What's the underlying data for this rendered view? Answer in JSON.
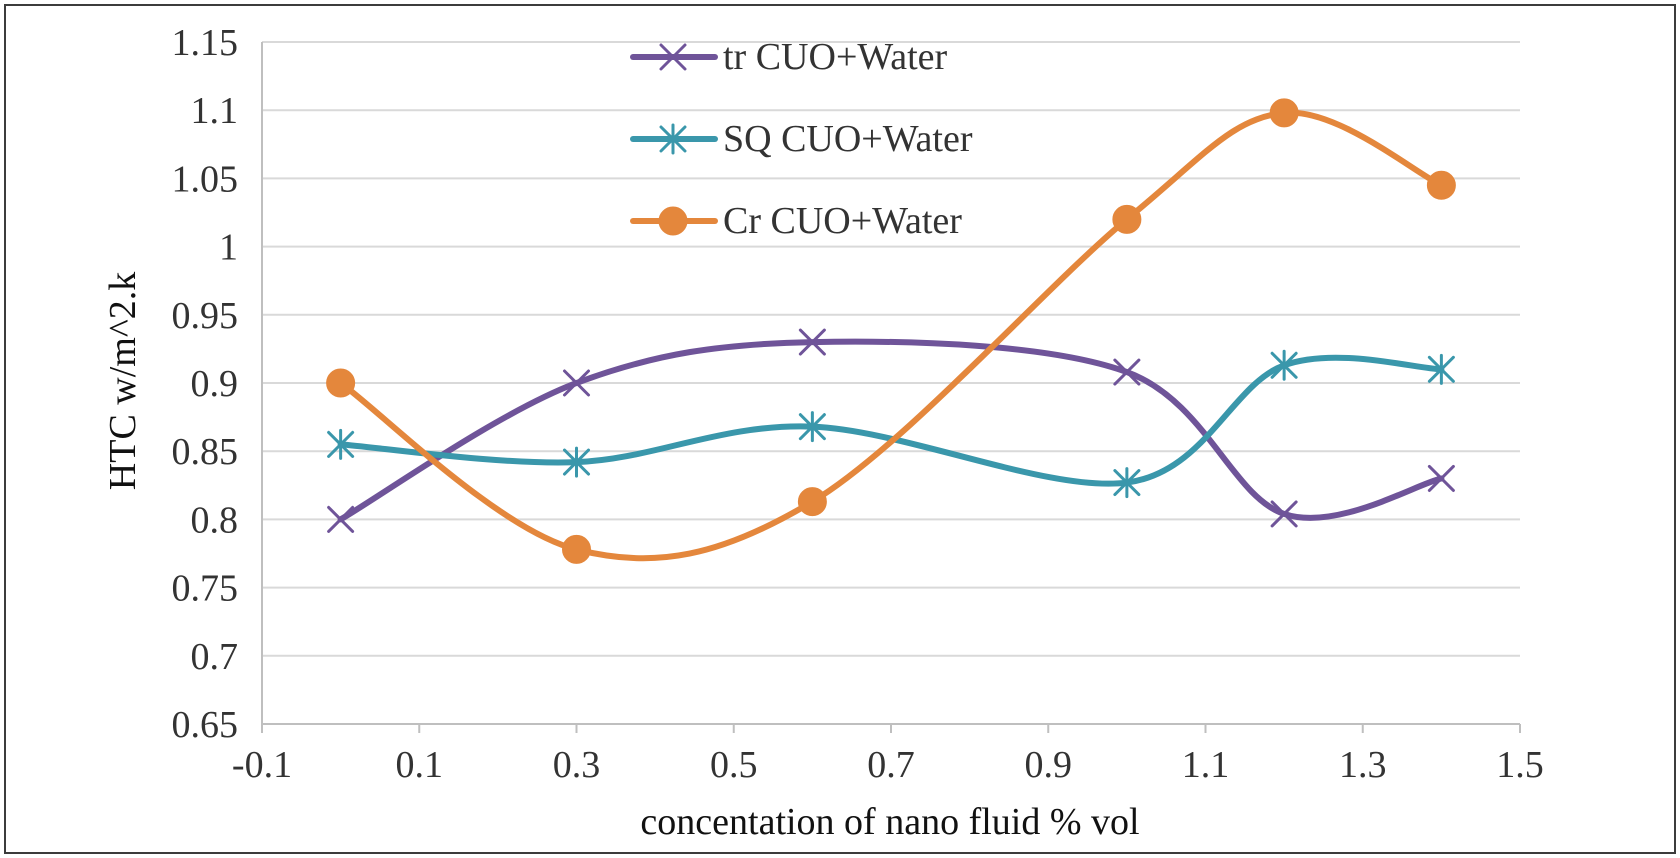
{
  "chart_data": {
    "type": "line",
    "smooth": true,
    "title": "",
    "xlabel": "concentation of nano fluid  % vol",
    "ylabel": "HTC w/m^2.k",
    "xlim": [
      -0.1,
      1.5
    ],
    "ylim": [
      0.65,
      1.15
    ],
    "xticks": [
      -0.1,
      0.1,
      0.3,
      0.5,
      0.7,
      0.9,
      1.1,
      1.3,
      1.5
    ],
    "xtick_labels": [
      "-0.1",
      "0.1",
      "0.3",
      "0.5",
      "0.7",
      "0.9",
      "1.1",
      "1.3",
      "1.5"
    ],
    "yticks": [
      0.65,
      0.7,
      0.75,
      0.8,
      0.85,
      0.9,
      0.95,
      1.0,
      1.05,
      1.1,
      1.15
    ],
    "ytick_labels": [
      "0.65",
      "0.7",
      "0.75",
      "0.8",
      "0.85",
      "0.9",
      "0.95",
      "1",
      "1.05",
      "1.1",
      "1.15"
    ],
    "grid": "horizontal",
    "legend_position": "top-center",
    "series": [
      {
        "name": "tr  CUO+Water",
        "color": "#6f5499",
        "marker": "x",
        "x": [
          0.0,
          0.3,
          0.6,
          1.0,
          1.2,
          1.4
        ],
        "y": [
          0.8,
          0.9,
          0.93,
          0.908,
          0.804,
          0.83
        ]
      },
      {
        "name": "SQ  CUO+Water",
        "color": "#3a97ab",
        "marker": "asterisk",
        "x": [
          0.0,
          0.3,
          0.6,
          1.0,
          1.2,
          1.4
        ],
        "y": [
          0.855,
          0.842,
          0.868,
          0.827,
          0.913,
          0.91
        ]
      },
      {
        "name": "Cr  CUO+Water",
        "color": "#e4873c",
        "marker": "circle",
        "x": [
          0.0,
          0.3,
          0.6,
          1.0,
          1.2,
          1.4
        ],
        "y": [
          0.9,
          0.778,
          0.813,
          1.02,
          1.098,
          1.045
        ]
      }
    ]
  }
}
